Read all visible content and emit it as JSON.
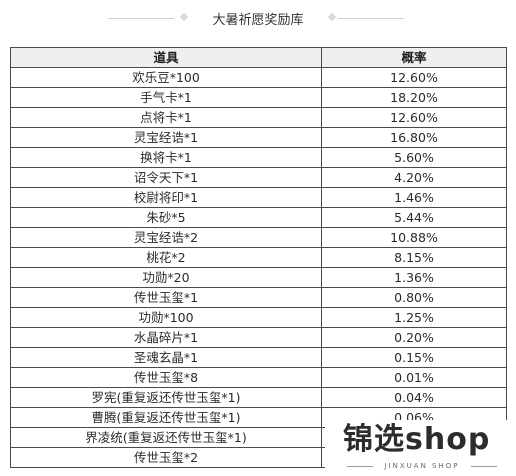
{
  "header": {
    "title": "大暑祈愿奖励库"
  },
  "table": {
    "columns": [
      "道具",
      "概率"
    ],
    "rows": [
      [
        "欢乐豆*100",
        "12.60%"
      ],
      [
        "手气卡*1",
        "18.20%"
      ],
      [
        "点将卡*1",
        "12.60%"
      ],
      [
        "灵宝经诰*1",
        "16.80%"
      ],
      [
        "换将卡*1",
        "5.60%"
      ],
      [
        "诏令天下*1",
        "4.20%"
      ],
      [
        "校尉将印*1",
        "1.46%"
      ],
      [
        "朱砂*5",
        "5.44%"
      ],
      [
        "灵宝经诰*2",
        "10.88%"
      ],
      [
        "桃花*2",
        "8.15%"
      ],
      [
        "功勋*20",
        "1.36%"
      ],
      [
        "传世玉玺*1",
        "0.80%"
      ],
      [
        "功勋*100",
        "1.25%"
      ],
      [
        "水晶碎片*1",
        "0.20%"
      ],
      [
        "圣魂玄晶*1",
        "0.15%"
      ],
      [
        "传世玉玺*8",
        "0.01%"
      ],
      [
        "罗宪(重复返还传世玉玺*1)",
        "0.04%"
      ],
      [
        "曹腾(重复返还传世玉玺*1)",
        "0.06%"
      ],
      [
        "界凌统(重复返还传世玉玺*1)",
        ""
      ],
      [
        "传世玉玺*2",
        ""
      ]
    ]
  },
  "watermark": {
    "brand": "锦选shop",
    "sub": "JINXUAN SHOP"
  },
  "colors": {
    "border": "#4a4a4a",
    "header_bg": "#efefef",
    "text": "#2b2b2b"
  }
}
